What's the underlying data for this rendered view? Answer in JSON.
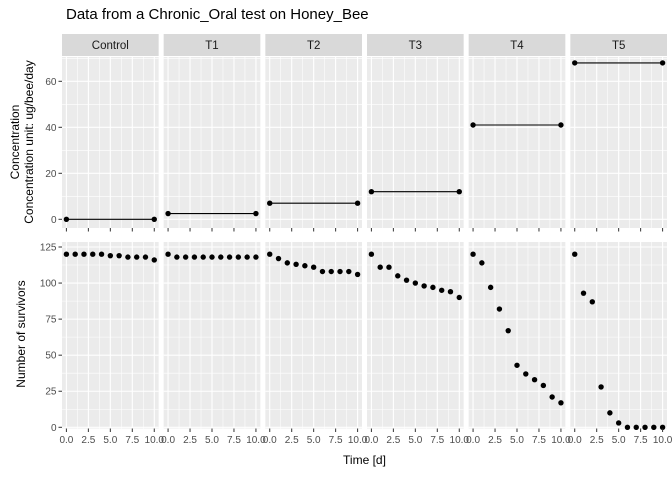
{
  "title": "Data from a Chronic_Oral test on Honey_Bee",
  "chart_data": {
    "type": "scatter",
    "title": "Data from a Chronic_Oral test on Honey_Bee",
    "xlabel": "Time [d]",
    "facets": [
      "Control",
      "T1",
      "T2",
      "T3",
      "T4",
      "T5"
    ],
    "x": [
      0,
      1,
      2,
      3,
      4,
      5,
      6,
      7,
      8,
      9,
      10
    ],
    "x_tick_values": [
      0,
      2.5,
      5,
      7.5,
      10
    ],
    "x_tick_labels": [
      "0.0",
      "2.5",
      "5.0",
      "7.5",
      "10.0"
    ],
    "grid": "on",
    "top_row": {
      "ylabel_line1": "Concentration",
      "ylabel_line2": "Concentration unit: ug/bee/day",
      "y_ticks": [
        0,
        20,
        40,
        60
      ],
      "y_minor_ticks": [
        10,
        30,
        50,
        70
      ],
      "ylim": [
        -3.8,
        70.6
      ],
      "style": "constant concentration line with points at day 0 and day 10",
      "concentration_by_facet": {
        "Control": 0,
        "T1": 2.5,
        "T2": 7,
        "T3": 12,
        "T4": 41,
        "T5": 68
      }
    },
    "bottom_row": {
      "ylabel": "Number of survivors",
      "y_ticks": [
        0,
        25,
        50,
        75,
        100,
        125
      ],
      "y_minor_ticks": [
        12.5,
        37.5,
        62.5,
        87.5,
        112.5
      ],
      "ylim": [
        -1,
        128.5
      ],
      "survivors_by_facet": {
        "Control": [
          120,
          120,
          120,
          120,
          120,
          119,
          119,
          118,
          118,
          118,
          116
        ],
        "T1": [
          120,
          118,
          118,
          118,
          118,
          118,
          118,
          118,
          118,
          118,
          118
        ],
        "T2": [
          120,
          117,
          114,
          113,
          112,
          111,
          108,
          108,
          108,
          108,
          106
        ],
        "T3": [
          120,
          111,
          111,
          105,
          102,
          100,
          98,
          97,
          95,
          94,
          90
        ],
        "T4": [
          120,
          114,
          97,
          82,
          67,
          43,
          37,
          33,
          29,
          21,
          17
        ],
        "T5": [
          120,
          93,
          87,
          28,
          10,
          3,
          0,
          0,
          0,
          0,
          0
        ]
      }
    },
    "colors": {
      "panel_bg": "#EBEBEB",
      "grid": "#FFFFFF",
      "strip_bg": "#D9D9D9",
      "strip_text": "#1A1A1A",
      "point": "#000000",
      "tick_label": "#4D4D4D",
      "tick_mark": "#333333",
      "axis_title": "#000000"
    }
  }
}
